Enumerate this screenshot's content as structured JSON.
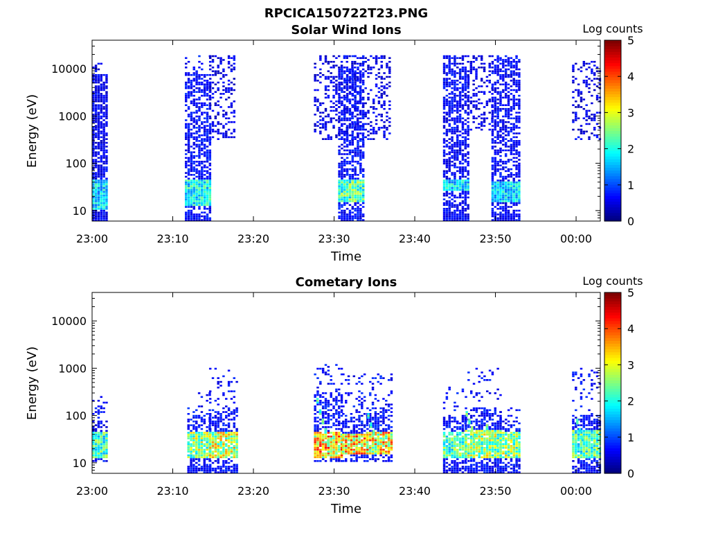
{
  "figure_title": "RPCICA150722T23.PNG",
  "colorbar": {
    "label": "Log counts",
    "range": [
      0,
      5
    ],
    "ticks": [
      "0",
      "1",
      "2",
      "3",
      "4",
      "5"
    ]
  },
  "chart_data": [
    {
      "type": "heatmap",
      "title": "Solar Wind Ions",
      "xlabel": "Time",
      "ylabel": "Energy (eV)",
      "y_scale": "log",
      "ylim": [
        6,
        40000
      ],
      "xlim": [
        "23:00",
        "00:03"
      ],
      "x_ticks": [
        "23:00",
        "23:10",
        "23:20",
        "23:30",
        "23:40",
        "23:50",
        "00:00"
      ],
      "y_ticks": [
        "10",
        "100",
        "1000",
        "10000"
      ],
      "clusters": [
        {
          "t0": 0.0,
          "t1": 1.8,
          "e_low": 6,
          "e_high": 15000,
          "dense_high": 8000,
          "density": 0.8,
          "core_low": 10,
          "core_high": 45,
          "core_level": 2.0,
          "bg_level": 0.3,
          "bottom_stripe": 1
        },
        {
          "t0": 11.5,
          "t1": 14.5,
          "e_low": 6,
          "e_high": 20000,
          "dense_high": 8000,
          "density": 0.6,
          "core_low": 12,
          "core_high": 45,
          "core_level": 2.2,
          "bg_level": 0.4,
          "bottom_stripe": 1
        },
        {
          "t0": 14.5,
          "t1": 17.5,
          "e_low": 300,
          "e_high": 20000,
          "dense_high": 20000,
          "density": 0.35,
          "core_low": 0,
          "core_high": 0,
          "core_level": 0,
          "bg_level": 0.25,
          "bottom_stripe": 0
        },
        {
          "t0": 27.5,
          "t1": 37.0,
          "e_low": 300,
          "e_high": 20000,
          "dense_high": 20000,
          "density": 0.3,
          "core_low": 0,
          "core_high": 0,
          "core_level": 0,
          "bg_level": 0.25,
          "bottom_stripe": 0
        },
        {
          "t0": 30.5,
          "t1": 33.5,
          "e_low": 6,
          "e_high": 20000,
          "dense_high": 10000,
          "density": 0.6,
          "core_low": 15,
          "core_high": 45,
          "core_level": 2.6,
          "bg_level": 0.4,
          "bottom_stripe": 1
        },
        {
          "t0": 43.5,
          "t1": 46.5,
          "e_low": 6,
          "e_high": 20000,
          "dense_high": 20000,
          "density": 0.65,
          "core_low": 25,
          "core_high": 45,
          "core_level": 2.0,
          "bg_level": 0.35,
          "bottom_stripe": 1
        },
        {
          "t0": 46.5,
          "t1": 49.5,
          "e_low": 500,
          "e_high": 20000,
          "dense_high": 20000,
          "density": 0.3,
          "core_low": 0,
          "core_high": 0,
          "core_level": 0,
          "bg_level": 0.25,
          "bottom_stripe": 0
        },
        {
          "t0": 49.5,
          "t1": 53.0,
          "e_low": 6,
          "e_high": 20000,
          "dense_high": 20000,
          "density": 0.6,
          "core_low": 15,
          "core_high": 40,
          "core_level": 2.0,
          "bg_level": 0.35,
          "bottom_stripe": 1
        },
        {
          "t0": 59.5,
          "t1": 62.8,
          "e_low": 300,
          "e_high": 15000,
          "dense_high": 15000,
          "density": 0.3,
          "core_low": 0,
          "core_high": 0,
          "core_level": 0,
          "bg_level": 0.25,
          "bottom_stripe": 0
        }
      ]
    },
    {
      "type": "heatmap",
      "title": "Cometary Ions",
      "xlabel": "Time",
      "ylabel": "Energy (eV)",
      "y_scale": "log",
      "ylim": [
        6,
        40000
      ],
      "xlim": [
        "23:00",
        "00:03"
      ],
      "x_ticks": [
        "23:00",
        "23:10",
        "23:20",
        "23:30",
        "23:40",
        "23:50",
        "00:00"
      ],
      "y_ticks": [
        "10",
        "100",
        "1000",
        "10000"
      ],
      "clusters": [
        {
          "t0": 0.0,
          "t1": 1.8,
          "e_low": 10,
          "e_high": 250,
          "dense_high": 80,
          "density": 0.7,
          "core_low": 12,
          "core_high": 45,
          "core_level": 2.5,
          "bg_level": 0.35,
          "bottom_stripe": 0
        },
        {
          "t0": 11.8,
          "t1": 14.5,
          "e_low": 6,
          "e_high": 300,
          "dense_high": 100,
          "density": 0.55,
          "core_low": 12,
          "core_high": 45,
          "core_level": 3.0,
          "bg_level": 0.4,
          "bottom_stripe": 1
        },
        {
          "t0": 14.5,
          "t1": 17.8,
          "e_low": 6,
          "e_high": 1000,
          "dense_high": 150,
          "density": 0.5,
          "core_low": 12,
          "core_high": 45,
          "core_level": 3.3,
          "bg_level": 0.4,
          "bottom_stripe": 1
        },
        {
          "t0": 27.5,
          "t1": 31.0,
          "e_low": 10,
          "e_high": 1200,
          "dense_high": 300,
          "density": 0.55,
          "core_low": 12,
          "core_high": 45,
          "core_level": 3.8,
          "bg_level": 0.4,
          "bottom_stripe": 0
        },
        {
          "t0": 31.0,
          "t1": 34.0,
          "e_low": 10,
          "e_high": 800,
          "dense_high": 100,
          "density": 0.55,
          "core_low": 15,
          "core_high": 40,
          "core_level": 3.8,
          "bg_level": 0.4,
          "bottom_stripe": 0
        },
        {
          "t0": 34.0,
          "t1": 37.0,
          "e_low": 10,
          "e_high": 800,
          "dense_high": 150,
          "density": 0.55,
          "core_low": 15,
          "core_high": 45,
          "core_level": 3.7,
          "bg_level": 0.4,
          "bottom_stripe": 0
        },
        {
          "t0": 43.5,
          "t1": 46.2,
          "e_low": 6,
          "e_high": 400,
          "dense_high": 100,
          "density": 0.5,
          "core_low": 12,
          "core_high": 45,
          "core_level": 2.6,
          "bg_level": 0.4,
          "bottom_stripe": 1
        },
        {
          "t0": 46.2,
          "t1": 50.5,
          "e_low": 6,
          "e_high": 1000,
          "dense_high": 150,
          "density": 0.55,
          "core_low": 12,
          "core_high": 50,
          "core_level": 3.0,
          "bg_level": 0.4,
          "bottom_stripe": 1
        },
        {
          "t0": 50.5,
          "t1": 53.0,
          "e_low": 6,
          "e_high": 150,
          "dense_high": 80,
          "density": 0.5,
          "core_low": 12,
          "core_high": 45,
          "core_level": 3.0,
          "bg_level": 0.4,
          "bottom_stripe": 1
        },
        {
          "t0": 59.5,
          "t1": 62.8,
          "e_low": 6,
          "e_high": 1000,
          "dense_high": 100,
          "density": 0.55,
          "core_low": 12,
          "core_high": 50,
          "core_level": 2.6,
          "bg_level": 0.4,
          "bottom_stripe": 1
        }
      ],
      "streaks": [
        {
          "t0": 27.8,
          "t1": 29.2,
          "e0": 200,
          "e1": 25,
          "level": 2.3
        },
        {
          "t0": 34.1,
          "t1": 35.0,
          "e0": 100,
          "e1": 30,
          "level": 2.2
        },
        {
          "t0": 46.3,
          "t1": 47.8,
          "e0": 110,
          "e1": 20,
          "level": 2.4
        },
        {
          "t0": 48.8,
          "t1": 50.3,
          "e0": 55,
          "e1": 22,
          "level": 2.4
        },
        {
          "t0": 60.0,
          "t1": 60.7,
          "e0": 75,
          "e1": 30,
          "level": 2.0
        }
      ]
    }
  ]
}
